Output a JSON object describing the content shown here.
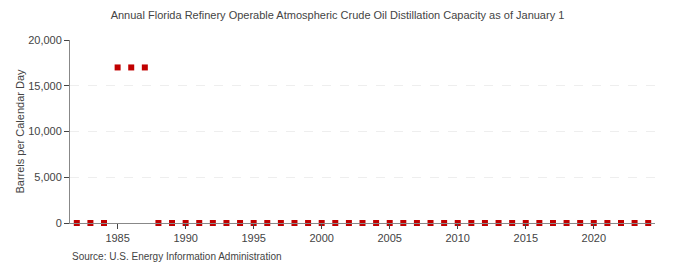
{
  "chart_data": {
    "type": "scatter",
    "title": "Annual Florida Refinery Operable Atmospheric Crude Oil Distillation Capacity as of January 1",
    "ylabel": "Barrels per Calendar Day",
    "source": "Source: U.S. Energy Information Administration",
    "color": "#c00000",
    "marker": "square",
    "grid": true,
    "x": [
      1982,
      1983,
      1984,
      1985,
      1986,
      1987,
      1988,
      1989,
      1990,
      1991,
      1992,
      1993,
      1994,
      1995,
      1996,
      1997,
      1998,
      1999,
      2000,
      2001,
      2002,
      2003,
      2004,
      2005,
      2006,
      2007,
      2008,
      2009,
      2010,
      2011,
      2012,
      2013,
      2014,
      2015,
      2016,
      2017,
      2018,
      2019,
      2020,
      2021,
      2022,
      2023,
      2024
    ],
    "values": [
      0,
      0,
      0,
      17000,
      17000,
      17000,
      0,
      0,
      0,
      0,
      0,
      0,
      0,
      0,
      0,
      0,
      0,
      0,
      0,
      0,
      0,
      0,
      0,
      0,
      0,
      0,
      0,
      0,
      0,
      0,
      0,
      0,
      0,
      0,
      0,
      0,
      0,
      0,
      0,
      0,
      0,
      0,
      0
    ],
    "xlim": [
      1981.5,
      2024.5
    ],
    "xticks": [
      1985,
      1990,
      1995,
      2000,
      2005,
      2010,
      2015,
      2020
    ],
    "ylim": [
      0,
      20000
    ],
    "yticks": [
      0,
      {
        "value": 5000,
        "label": "5,000"
      },
      {
        "value": 10000,
        "label": "10,000"
      },
      {
        "value": 15000,
        "label": "15,000"
      },
      {
        "value": 20000,
        "label": "20,000"
      }
    ]
  }
}
